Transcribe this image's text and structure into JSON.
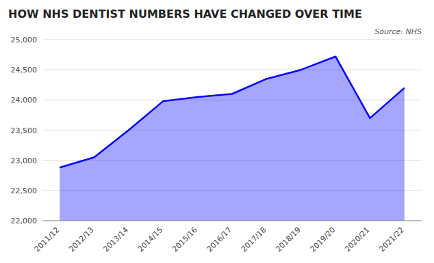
{
  "chart_data": {
    "type": "area",
    "title": "HOW NHS DENTIST NUMBERS HAVE CHANGED OVER TIME",
    "annotations": [
      "Source: NHS"
    ],
    "categories": [
      "2011/12",
      "2012/13",
      "2013/14",
      "2014/15",
      "2015/16",
      "2016/17",
      "2017/18",
      "2018/19",
      "2019/20",
      "2020/21",
      "2021/22"
    ],
    "values": [
      22880,
      23050,
      23500,
      23980,
      24050,
      24100,
      24350,
      24500,
      24720,
      23700,
      24200
    ],
    "color": "#0000ff",
    "ylim": [
      22000,
      25000
    ],
    "yticks": [
      {
        "value": 22000,
        "label": "22,000"
      },
      {
        "value": 22500,
        "label": "22,500"
      },
      {
        "value": 23000,
        "label": "23,000"
      },
      {
        "value": 23500,
        "label": "23,500"
      },
      {
        "value": 24000,
        "label": "24,000"
      },
      {
        "value": 24500,
        "label": "24,500"
      },
      {
        "value": 25000,
        "label": "25,000"
      }
    ],
    "grid": true
  }
}
